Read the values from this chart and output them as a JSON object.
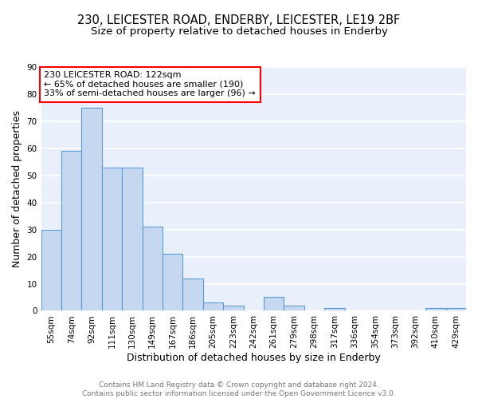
{
  "title1": "230, LEICESTER ROAD, ENDERBY, LEICESTER, LE19 2BF",
  "title2": "Size of property relative to detached houses in Enderby",
  "xlabel": "Distribution of detached houses by size in Enderby",
  "ylabel": "Number of detached properties",
  "footnote1": "Contains HM Land Registry data © Crown copyright and database right 2024.",
  "footnote2": "Contains public sector information licensed under the Open Government Licence v3.0.",
  "annotation_line1": "230 LEICESTER ROAD: 122sqm",
  "annotation_line2": "← 65% of detached houses are smaller (190)",
  "annotation_line3": "33% of semi-detached houses are larger (96) →",
  "bar_labels": [
    "55sqm",
    "74sqm",
    "92sqm",
    "111sqm",
    "130sqm",
    "149sqm",
    "167sqm",
    "186sqm",
    "205sqm",
    "223sqm",
    "242sqm",
    "261sqm",
    "279sqm",
    "298sqm",
    "317sqm",
    "336sqm",
    "354sqm",
    "373sqm",
    "392sqm",
    "410sqm",
    "429sqm"
  ],
  "bar_values": [
    30,
    59,
    75,
    53,
    53,
    31,
    21,
    12,
    3,
    2,
    0,
    5,
    2,
    0,
    1,
    0,
    0,
    0,
    0,
    1,
    1
  ],
  "bar_color": "#c5d8f0",
  "bar_edge_color": "#5b9bd5",
  "bg_color": "#eaf0fb",
  "grid_color": "#ffffff",
  "ylim": [
    0,
    90
  ],
  "yticks": [
    0,
    10,
    20,
    30,
    40,
    50,
    60,
    70,
    80,
    90
  ],
  "title1_fontsize": 10.5,
  "title2_fontsize": 9.5,
  "axis_label_fontsize": 9,
  "tick_fontsize": 7.5,
  "annotation_fontsize": 8,
  "footnote_fontsize": 6.5
}
